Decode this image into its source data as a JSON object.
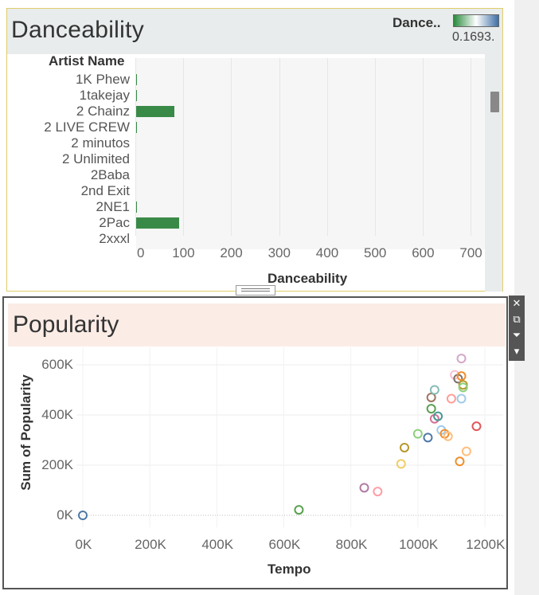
{
  "danceability": {
    "title": "Danceability",
    "legend": {
      "title": "Dance..",
      "value": "0.1693.",
      "colors": [
        "#2a8a3e",
        "#ffffff",
        "#3d6fa5"
      ]
    },
    "row_header": "Artist Name",
    "x_axis_title": "Danceability",
    "x_ticks": [
      "0",
      "100",
      "200",
      "300",
      "400",
      "500",
      "600",
      "700"
    ],
    "bar_color": "#3a8a47",
    "rows": [
      {
        "artist": "1K Phew",
        "value": 2
      },
      {
        "artist": "1takejay",
        "value": 1
      },
      {
        "artist": "2 Chainz",
        "value": 81
      },
      {
        "artist": "2 LIVE CREW",
        "value": 2
      },
      {
        "artist": "2 minutos",
        "value": 0
      },
      {
        "artist": "2 Unlimited",
        "value": 0
      },
      {
        "artist": "2Baba",
        "value": 0
      },
      {
        "artist": "2nd Exit",
        "value": 0
      },
      {
        "artist": "2NE1",
        "value": 2
      },
      {
        "artist": "2Pac",
        "value": 91
      },
      {
        "artist": "2xxxl",
        "value": 0
      }
    ]
  },
  "popularity": {
    "title": "Popularity",
    "toolbar": [
      "close-icon",
      "popout-icon",
      "filter-icon",
      "dropdown-icon"
    ],
    "chart_data": {
      "type": "scatter",
      "title": "Popularity",
      "xlabel": "Tempo",
      "ylabel": "Sum of Popularity",
      "x_ticks": [
        "0K",
        "200K",
        "400K",
        "600K",
        "800K",
        "1000K",
        "1200K"
      ],
      "y_ticks": [
        "0K",
        "200K",
        "400K",
        "600K"
      ],
      "xlim": [
        0,
        1250000
      ],
      "ylim": [
        -40000,
        690000
      ],
      "marker": "hollow-circle",
      "points": [
        {
          "x": 0,
          "y": 0,
          "color": "#4e79a7"
        },
        {
          "x": 645000,
          "y": 22000,
          "color": "#59a14f"
        },
        {
          "x": 840000,
          "y": 110000,
          "color": "#b07aa1"
        },
        {
          "x": 880000,
          "y": 95000,
          "color": "#ff9da7"
        },
        {
          "x": 950000,
          "y": 205000,
          "color": "#f1ce63"
        },
        {
          "x": 960000,
          "y": 270000,
          "color": "#b6992d"
        },
        {
          "x": 1000000,
          "y": 325000,
          "color": "#8cd17d"
        },
        {
          "x": 1030000,
          "y": 310000,
          "color": "#4e79a7"
        },
        {
          "x": 1040000,
          "y": 470000,
          "color": "#9d7660"
        },
        {
          "x": 1040000,
          "y": 425000,
          "color": "#59a14f"
        },
        {
          "x": 1050000,
          "y": 500000,
          "color": "#86bcb6"
        },
        {
          "x": 1050000,
          "y": 385000,
          "color": "#d37295"
        },
        {
          "x": 1060000,
          "y": 395000,
          "color": "#499894"
        },
        {
          "x": 1070000,
          "y": 340000,
          "color": "#a0cbe8"
        },
        {
          "x": 1080000,
          "y": 325000,
          "color": "#f28e2b"
        },
        {
          "x": 1090000,
          "y": 315000,
          "color": "#ffbe7d"
        },
        {
          "x": 1100000,
          "y": 465000,
          "color": "#ff9d9a"
        },
        {
          "x": 1110000,
          "y": 560000,
          "color": "#fabfd2"
        },
        {
          "x": 1120000,
          "y": 545000,
          "color": "#79706e"
        },
        {
          "x": 1125000,
          "y": 215000,
          "color": "#f28e2b"
        },
        {
          "x": 1130000,
          "y": 555000,
          "color": "#f28e2b"
        },
        {
          "x": 1130000,
          "y": 465000,
          "color": "#a0cbe8"
        },
        {
          "x": 1130000,
          "y": 625000,
          "color": "#d4a6c8"
        },
        {
          "x": 1135000,
          "y": 520000,
          "color": "#b6992d"
        },
        {
          "x": 1135000,
          "y": 510000,
          "color": "#8cd17d"
        },
        {
          "x": 1145000,
          "y": 255000,
          "color": "#ffbe7d"
        },
        {
          "x": 1175000,
          "y": 355000,
          "color": "#e15759"
        }
      ]
    }
  }
}
